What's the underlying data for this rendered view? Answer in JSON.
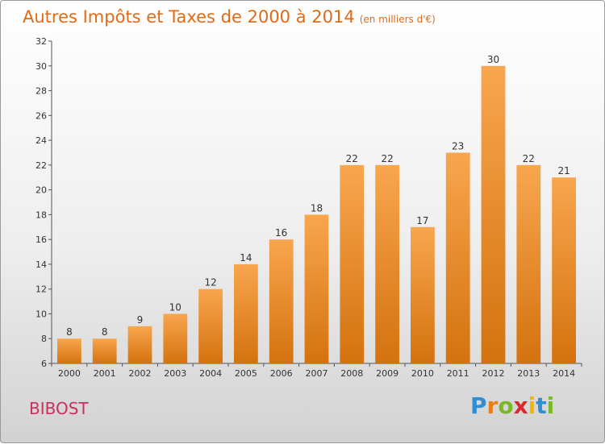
{
  "header": {
    "title": "Autres Impôts et Taxes de 2000 à 2014",
    "unit": "(en milliers d'€)"
  },
  "footer": {
    "commune": "BIBOST",
    "logo_letters": [
      "P",
      "r",
      "o",
      "x",
      "i",
      "t",
      "i"
    ],
    "logo_colors": [
      "#2e8fd6",
      "#e87d1a",
      "#7ab828",
      "#d92b2b",
      "#f0b800",
      "#2e8fd6",
      "#7ab828"
    ]
  },
  "colors": {
    "bar_top": "#f8a64e",
    "bar_bottom": "#d4720f",
    "title": "#e06b17",
    "commune": "#cc2e5e"
  },
  "chart_data": {
    "type": "bar",
    "title": "Autres Impôts et Taxes de 2000 à 2014",
    "subtitle": "(en milliers d'€)",
    "xlabel": "",
    "ylabel": "",
    "categories": [
      "2000",
      "2001",
      "2002",
      "2003",
      "2004",
      "2005",
      "2006",
      "2007",
      "2008",
      "2009",
      "2010",
      "2011",
      "2012",
      "2013",
      "2014"
    ],
    "values": [
      8,
      8,
      9,
      10,
      12,
      14,
      16,
      18,
      22,
      22,
      17,
      23,
      30,
      22,
      21
    ],
    "ylim": [
      6,
      32
    ],
    "yticks": [
      6,
      8,
      10,
      12,
      14,
      16,
      18,
      20,
      22,
      24,
      26,
      28,
      30,
      32
    ],
    "grid": false,
    "legend": "none"
  }
}
